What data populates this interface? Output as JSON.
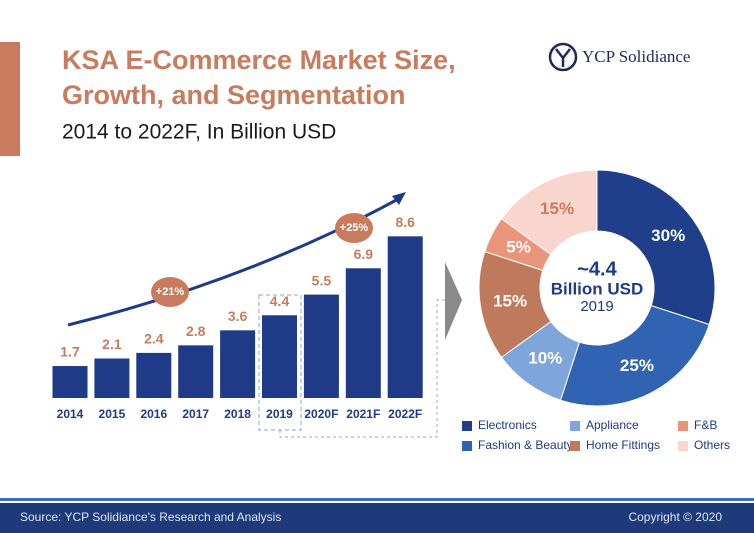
{
  "header": {
    "title_lines": [
      "KSA E-Commerce Market Size,",
      "Growth, and Segmentation"
    ],
    "subtitle": "2014 to 2022F, In Billion USD",
    "logo": "YCP Solidiance"
  },
  "chart_data": [
    {
      "type": "bar",
      "categories": [
        "2014",
        "2015",
        "2016",
        "2017",
        "2018",
        "2019",
        "2020F",
        "2021F",
        "2022F"
      ],
      "values": [
        1.7,
        2.1,
        2.4,
        2.8,
        3.6,
        4.4,
        5.5,
        6.9,
        8.6
      ],
      "color": "#1f3a87",
      "ylim": [
        0,
        10
      ],
      "annotations": [
        "+21%",
        "+25%"
      ]
    },
    {
      "type": "pie",
      "center_lines": [
        "~4.4",
        "Billion USD",
        "2019"
      ],
      "categories": [
        "Electronics",
        "Fashion & Beauty",
        "Appliance",
        "Home Fittings",
        "F&B",
        "Others"
      ],
      "values": [
        30,
        25,
        10,
        15,
        5,
        15
      ],
      "value_labels": [
        "30%",
        "25%",
        "10%",
        "15%",
        "5%",
        "15%"
      ],
      "colors": [
        "#1f3f8a",
        "#3064b2",
        "#7ea6da",
        "#bf7a5d",
        "#e9957a",
        "#f9d6cd"
      ]
    }
  ],
  "footer": {
    "source": "Source: YCP Solidiance's Research and Analysis",
    "copyright": "Copyright © 2020"
  }
}
